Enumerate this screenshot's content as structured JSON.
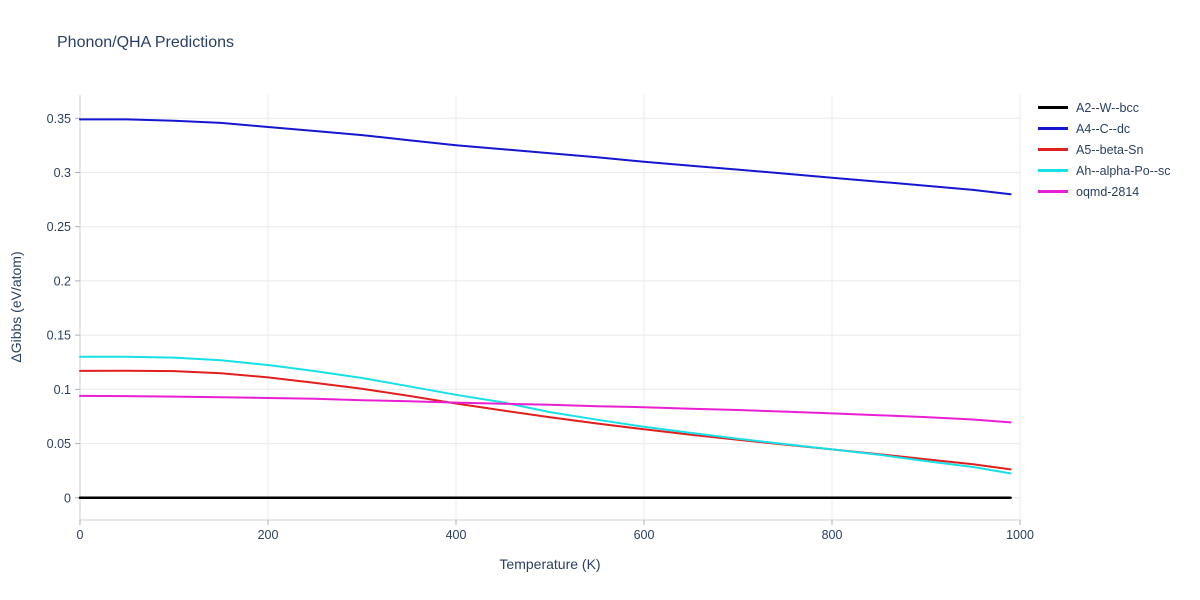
{
  "title": "Phonon/QHA Predictions",
  "chart_data": {
    "type": "line",
    "title": "Phonon/QHA Predictions",
    "xlabel": "Temperature (K)",
    "ylabel": "ΔGibbs (eV/atom)",
    "xlim": [
      0,
      1000
    ],
    "ylim": [
      -0.0205,
      0.3715
    ],
    "xticks": [
      0,
      200,
      400,
      600,
      800,
      1000
    ],
    "yticks": [
      0,
      0.05,
      0.1,
      0.15,
      0.2,
      0.25,
      0.3,
      0.35
    ],
    "grid": true,
    "legend_position": "top-right",
    "x": [
      0,
      50,
      100,
      150,
      200,
      250,
      300,
      350,
      400,
      450,
      500,
      550,
      600,
      650,
      700,
      750,
      800,
      850,
      900,
      950,
      990
    ],
    "series": [
      {
        "name": "A2--W--bcc",
        "color": "#000000",
        "width": 2.5,
        "values": [
          0,
          0,
          0,
          0,
          0,
          0,
          0,
          0,
          0,
          0,
          0,
          0,
          0,
          0,
          0,
          0,
          0,
          0,
          0,
          0,
          0
        ]
      },
      {
        "name": "A4--C--dc",
        "color": "#1616d1",
        "width": 2,
        "values": [
          0.349,
          0.349,
          0.3478,
          0.3458,
          0.342,
          0.3383,
          0.3345,
          0.3298,
          0.3252,
          0.3215,
          0.3178,
          0.314,
          0.31,
          0.3063,
          0.3027,
          0.299,
          0.2952,
          0.2915,
          0.2878,
          0.284,
          0.28
        ]
      },
      {
        "name": "A5--beta-Sn",
        "color": "#e11f1f",
        "width": 2,
        "values": [
          0.117,
          0.1172,
          0.1168,
          0.1148,
          0.111,
          0.106,
          0.1005,
          0.094,
          0.087,
          0.0805,
          0.0742,
          0.0685,
          0.0632,
          0.0582,
          0.0535,
          0.049,
          0.0446,
          0.0402,
          0.0356,
          0.031,
          0.0262
        ]
      },
      {
        "name": "Ah--alpha-Po--sc",
        "color": "#17e0e6",
        "width": 2,
        "values": [
          0.13,
          0.13,
          0.1293,
          0.1268,
          0.1225,
          0.1168,
          0.1105,
          0.1028,
          0.095,
          0.088,
          0.079,
          0.072,
          0.0655,
          0.0598,
          0.0545,
          0.0495,
          0.0446,
          0.0396,
          0.0338,
          0.0284,
          0.0225
        ]
      },
      {
        "name": "oqmd-2814",
        "color": "#ea1fd3",
        "width": 2,
        "values": [
          0.094,
          0.0938,
          0.0933,
          0.0927,
          0.092,
          0.0913,
          0.09,
          0.089,
          0.0878,
          0.0868,
          0.0858,
          0.0845,
          0.0835,
          0.0822,
          0.081,
          0.0795,
          0.0778,
          0.0762,
          0.0744,
          0.0722,
          0.0695
        ]
      }
    ],
    "style": {
      "grid_color": "#e9ebee",
      "axis_line_color": "#cbd0d6",
      "tick_color": "#a9b1bc",
      "text_color": "#2a3f5f",
      "background": "#ffffff"
    }
  }
}
